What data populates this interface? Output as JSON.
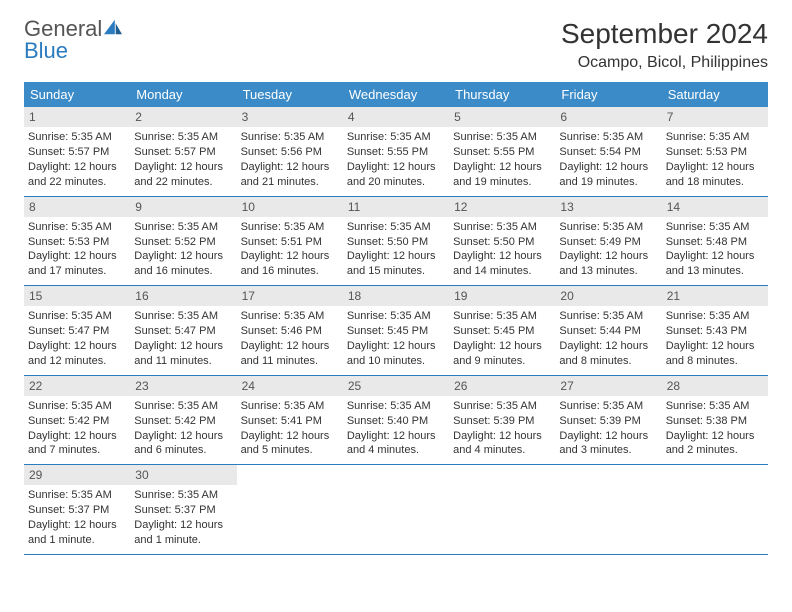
{
  "logo": {
    "text1": "General",
    "text2": "Blue"
  },
  "title": "September 2024",
  "location": "Ocampo, Bicol, Philippines",
  "colors": {
    "header_bg": "#3b8bc8",
    "week_border": "#2b7bbf",
    "daynum_bg": "#e9e9e9",
    "text": "#333333"
  },
  "day_headers": [
    "Sunday",
    "Monday",
    "Tuesday",
    "Wednesday",
    "Thursday",
    "Friday",
    "Saturday"
  ],
  "weeks": [
    [
      {
        "n": "1",
        "sr": "Sunrise: 5:35 AM",
        "ss": "Sunset: 5:57 PM",
        "dl": "Daylight: 12 hours and 22 minutes."
      },
      {
        "n": "2",
        "sr": "Sunrise: 5:35 AM",
        "ss": "Sunset: 5:57 PM",
        "dl": "Daylight: 12 hours and 22 minutes."
      },
      {
        "n": "3",
        "sr": "Sunrise: 5:35 AM",
        "ss": "Sunset: 5:56 PM",
        "dl": "Daylight: 12 hours and 21 minutes."
      },
      {
        "n": "4",
        "sr": "Sunrise: 5:35 AM",
        "ss": "Sunset: 5:55 PM",
        "dl": "Daylight: 12 hours and 20 minutes."
      },
      {
        "n": "5",
        "sr": "Sunrise: 5:35 AM",
        "ss": "Sunset: 5:55 PM",
        "dl": "Daylight: 12 hours and 19 minutes."
      },
      {
        "n": "6",
        "sr": "Sunrise: 5:35 AM",
        "ss": "Sunset: 5:54 PM",
        "dl": "Daylight: 12 hours and 19 minutes."
      },
      {
        "n": "7",
        "sr": "Sunrise: 5:35 AM",
        "ss": "Sunset: 5:53 PM",
        "dl": "Daylight: 12 hours and 18 minutes."
      }
    ],
    [
      {
        "n": "8",
        "sr": "Sunrise: 5:35 AM",
        "ss": "Sunset: 5:53 PM",
        "dl": "Daylight: 12 hours and 17 minutes."
      },
      {
        "n": "9",
        "sr": "Sunrise: 5:35 AM",
        "ss": "Sunset: 5:52 PM",
        "dl": "Daylight: 12 hours and 16 minutes."
      },
      {
        "n": "10",
        "sr": "Sunrise: 5:35 AM",
        "ss": "Sunset: 5:51 PM",
        "dl": "Daylight: 12 hours and 16 minutes."
      },
      {
        "n": "11",
        "sr": "Sunrise: 5:35 AM",
        "ss": "Sunset: 5:50 PM",
        "dl": "Daylight: 12 hours and 15 minutes."
      },
      {
        "n": "12",
        "sr": "Sunrise: 5:35 AM",
        "ss": "Sunset: 5:50 PM",
        "dl": "Daylight: 12 hours and 14 minutes."
      },
      {
        "n": "13",
        "sr": "Sunrise: 5:35 AM",
        "ss": "Sunset: 5:49 PM",
        "dl": "Daylight: 12 hours and 13 minutes."
      },
      {
        "n": "14",
        "sr": "Sunrise: 5:35 AM",
        "ss": "Sunset: 5:48 PM",
        "dl": "Daylight: 12 hours and 13 minutes."
      }
    ],
    [
      {
        "n": "15",
        "sr": "Sunrise: 5:35 AM",
        "ss": "Sunset: 5:47 PM",
        "dl": "Daylight: 12 hours and 12 minutes."
      },
      {
        "n": "16",
        "sr": "Sunrise: 5:35 AM",
        "ss": "Sunset: 5:47 PM",
        "dl": "Daylight: 12 hours and 11 minutes."
      },
      {
        "n": "17",
        "sr": "Sunrise: 5:35 AM",
        "ss": "Sunset: 5:46 PM",
        "dl": "Daylight: 12 hours and 11 minutes."
      },
      {
        "n": "18",
        "sr": "Sunrise: 5:35 AM",
        "ss": "Sunset: 5:45 PM",
        "dl": "Daylight: 12 hours and 10 minutes."
      },
      {
        "n": "19",
        "sr": "Sunrise: 5:35 AM",
        "ss": "Sunset: 5:45 PM",
        "dl": "Daylight: 12 hours and 9 minutes."
      },
      {
        "n": "20",
        "sr": "Sunrise: 5:35 AM",
        "ss": "Sunset: 5:44 PM",
        "dl": "Daylight: 12 hours and 8 minutes."
      },
      {
        "n": "21",
        "sr": "Sunrise: 5:35 AM",
        "ss": "Sunset: 5:43 PM",
        "dl": "Daylight: 12 hours and 8 minutes."
      }
    ],
    [
      {
        "n": "22",
        "sr": "Sunrise: 5:35 AM",
        "ss": "Sunset: 5:42 PM",
        "dl": "Daylight: 12 hours and 7 minutes."
      },
      {
        "n": "23",
        "sr": "Sunrise: 5:35 AM",
        "ss": "Sunset: 5:42 PM",
        "dl": "Daylight: 12 hours and 6 minutes."
      },
      {
        "n": "24",
        "sr": "Sunrise: 5:35 AM",
        "ss": "Sunset: 5:41 PM",
        "dl": "Daylight: 12 hours and 5 minutes."
      },
      {
        "n": "25",
        "sr": "Sunrise: 5:35 AM",
        "ss": "Sunset: 5:40 PM",
        "dl": "Daylight: 12 hours and 4 minutes."
      },
      {
        "n": "26",
        "sr": "Sunrise: 5:35 AM",
        "ss": "Sunset: 5:39 PM",
        "dl": "Daylight: 12 hours and 4 minutes."
      },
      {
        "n": "27",
        "sr": "Sunrise: 5:35 AM",
        "ss": "Sunset: 5:39 PM",
        "dl": "Daylight: 12 hours and 3 minutes."
      },
      {
        "n": "28",
        "sr": "Sunrise: 5:35 AM",
        "ss": "Sunset: 5:38 PM",
        "dl": "Daylight: 12 hours and 2 minutes."
      }
    ],
    [
      {
        "n": "29",
        "sr": "Sunrise: 5:35 AM",
        "ss": "Sunset: 5:37 PM",
        "dl": "Daylight: 12 hours and 1 minute."
      },
      {
        "n": "30",
        "sr": "Sunrise: 5:35 AM",
        "ss": "Sunset: 5:37 PM",
        "dl": "Daylight: 12 hours and 1 minute."
      },
      {
        "empty": true
      },
      {
        "empty": true
      },
      {
        "empty": true
      },
      {
        "empty": true
      },
      {
        "empty": true
      }
    ]
  ]
}
